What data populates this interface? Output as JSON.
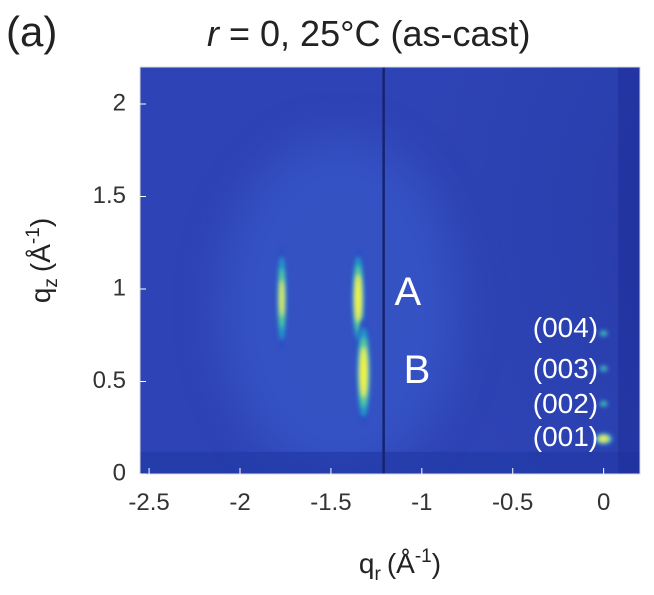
{
  "panel_label": "(a)",
  "title": {
    "r_symbol": "r",
    "rest": " = 0, 25°C (as-cast)"
  },
  "chart_data": {
    "type": "heatmap",
    "title": "r = 0, 25°C (as-cast)",
    "xlabel": {
      "base": "q",
      "sub": "r",
      "unit": "(Å",
      "exp": "-1",
      "close": ")"
    },
    "ylabel": {
      "base": "q",
      "sub": "z",
      "unit": "(Å",
      "exp": "-1",
      "close": ")"
    },
    "xlim": [
      -2.55,
      0.2
    ],
    "ylim": [
      0,
      2.2
    ],
    "xticks": [
      -2.5,
      -2,
      -1.5,
      -1,
      -0.5,
      0
    ],
    "yticks": [
      0,
      0.5,
      1,
      1.5,
      2
    ],
    "xtick_labels": [
      "-2.5",
      "-2",
      "-1.5",
      "-1",
      "-0.5",
      "0"
    ],
    "ytick_labels": [
      "0",
      "0.5",
      "1",
      "1.5",
      "2"
    ],
    "colormap": [
      "#1a2a8a",
      "#2b4dc4",
      "#20a4c8",
      "#5fd38a",
      "#f7f52e"
    ],
    "background_color": "#2e43b5",
    "peaks": [
      {
        "name": "peak-A",
        "q_r": -1.35,
        "q_z": 0.95,
        "intensity": 1.0,
        "sigma_r": 0.02,
        "sigma_z": 0.16
      },
      {
        "name": "peak-B",
        "q_r": -1.32,
        "q_z": 0.55,
        "intensity": 1.0,
        "sigma_r": 0.022,
        "sigma_z": 0.17
      },
      {
        "name": "peak-left",
        "q_r": -1.77,
        "q_z": 0.95,
        "intensity": 0.65,
        "sigma_r": 0.016,
        "sigma_z": 0.17
      },
      {
        "name": "peak-001",
        "q_r": 0.0,
        "q_z": 0.19,
        "intensity": 1.0,
        "sigma_r": 0.03,
        "sigma_z": 0.02
      },
      {
        "name": "peak-002",
        "q_r": 0.0,
        "q_z": 0.38,
        "intensity": 0.35,
        "sigma_r": 0.015,
        "sigma_z": 0.012
      },
      {
        "name": "peak-003",
        "q_r": 0.0,
        "q_z": 0.57,
        "intensity": 0.3,
        "sigma_r": 0.015,
        "sigma_z": 0.012
      },
      {
        "name": "peak-004",
        "q_r": 0.0,
        "q_z": 0.76,
        "intensity": 0.25,
        "sigma_r": 0.015,
        "sigma_z": 0.012
      }
    ],
    "gap_line_qr": -1.21,
    "annotations": [
      {
        "name": "annotation-A",
        "text": "A",
        "q_r": -1.15,
        "q_z": 0.97,
        "size": "large"
      },
      {
        "name": "annotation-B",
        "text": "B",
        "q_r": -1.1,
        "q_z": 0.55,
        "size": "large"
      },
      {
        "name": "annotation-004",
        "text": "(004)",
        "q_r": -0.21,
        "q_z": 0.78,
        "size": "small"
      },
      {
        "name": "annotation-003",
        "text": "(003)",
        "q_r": -0.21,
        "q_z": 0.56,
        "size": "small"
      },
      {
        "name": "annotation-002",
        "text": "(002)",
        "q_r": -0.21,
        "q_z": 0.37,
        "size": "small"
      },
      {
        "name": "annotation-001",
        "text": "(001)",
        "q_r": -0.21,
        "q_z": 0.19,
        "size": "small"
      }
    ]
  }
}
